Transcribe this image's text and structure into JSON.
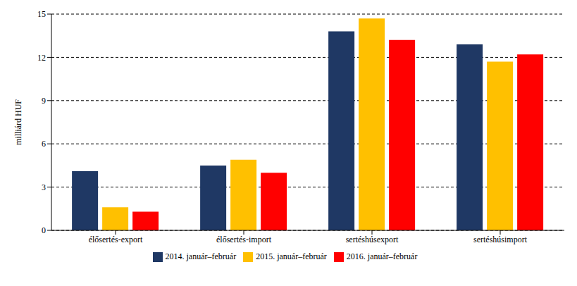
{
  "chart_data": {
    "type": "bar",
    "y_label": "milliárd HUF",
    "categories": [
      "élősertés-export",
      "élősertés-import",
      "sertéshúsexport",
      "sertéshúsimport"
    ],
    "series": [
      {
        "name": "2014. január–február",
        "color": "#1f3864",
        "values": [
          4.1,
          4.5,
          13.8,
          12.9
        ]
      },
      {
        "name": "2015. január–február",
        "color": "#ffc000",
        "values": [
          1.6,
          4.9,
          14.7,
          11.7
        ]
      },
      {
        "name": "2016. január–február",
        "color": "#ff0000",
        "values": [
          1.3,
          4.0,
          13.2,
          12.2
        ]
      }
    ],
    "ylim": [
      0,
      15
    ],
    "yticks": [
      0,
      3,
      6,
      9,
      12,
      15
    ],
    "grid": true,
    "legend": "bottom"
  }
}
